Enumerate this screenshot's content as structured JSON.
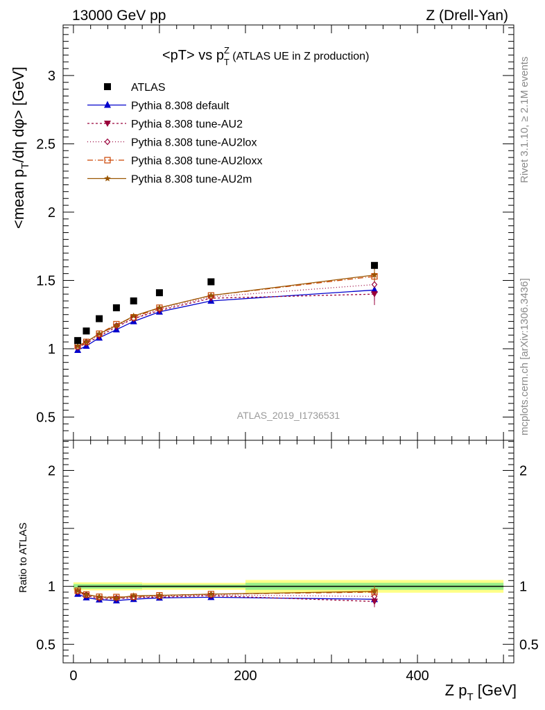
{
  "header": {
    "left": "13000 GeV pp",
    "right": "Z (Drell-Yan)"
  },
  "side_texts": {
    "rivet": "Rivet 3.1.10, ≥ 2.1M events",
    "mcplots": "mcplots.cern.ch [arXiv:1306.3436]"
  },
  "chart_data": {
    "type": "scatter",
    "title_main": "<pT> vs p",
    "title_sup": "Z",
    "title_sub": "T",
    "title_suffix": " (ATLAS UE in Z production)",
    "analysis_label": "ATLAS_2019_I1736531",
    "xlabel_main": "Z p",
    "xlabel_sub": "T",
    "xlabel_unit": " [GeV]",
    "ylabel_part1": "<mean p",
    "ylabel_sub": "T",
    "ylabel_part2": "/dη dφ> [GeV]",
    "ratio_ylabel": "Ratio to ATLAS",
    "xlim": [
      -12,
      512
    ],
    "ylim": [
      0.33,
      3.37
    ],
    "ratio_ylim": [
      0.34,
      2.26
    ],
    "x_ticks": [
      0,
      200,
      400
    ],
    "x_tick_labels": [
      "0",
      "200",
      "400"
    ],
    "y_ticks": [
      0.5,
      1,
      1.5,
      2,
      2.5,
      3
    ],
    "y_tick_labels": [
      "0.5",
      "1",
      "1.5",
      "2",
      "2.5",
      "3"
    ],
    "ratio_ticks": [
      0.5,
      1,
      2
    ],
    "ratio_tick_labels": [
      "0.5",
      "1",
      "2"
    ],
    "x": [
      5,
      15,
      30,
      50,
      70,
      100,
      160,
      350
    ],
    "data": {
      "name": "ATLAS",
      "values": [
        1.06,
        1.13,
        1.22,
        1.3,
        1.35,
        1.41,
        1.49,
        1.61
      ],
      "band": [
        [
          0,
          80,
          0.02,
          0.035
        ],
        [
          80,
          200,
          0.015,
          0.03
        ],
        [
          200,
          500,
          0.03,
          0.055
        ]
      ]
    },
    "series": [
      {
        "name": "Pythia 8.308 default",
        "color": "#0000cc",
        "marker": "triangle-up",
        "dash": "",
        "values": [
          0.99,
          1.02,
          1.08,
          1.14,
          1.2,
          1.27,
          1.35,
          1.43
        ]
      },
      {
        "name": "Pythia 8.308 tune-AU2",
        "color": "#99003a",
        "marker": "triangle-down",
        "dash": "3,3",
        "values": [
          1.01,
          1.04,
          1.09,
          1.16,
          1.22,
          1.28,
          1.37,
          1.4
        ]
      },
      {
        "name": "Pythia 8.308 tune-AU2lox",
        "color": "#99003a",
        "marker": "diamond-open",
        "dash": "1,3",
        "values": [
          1.01,
          1.05,
          1.1,
          1.17,
          1.22,
          1.29,
          1.38,
          1.47
        ]
      },
      {
        "name": "Pythia 8.308 tune-AU2loxx",
        "color": "#cc4400",
        "marker": "square-open",
        "dash": "8,3,1,3",
        "values": [
          1.02,
          1.05,
          1.11,
          1.18,
          1.23,
          1.3,
          1.39,
          1.53
        ]
      },
      {
        "name": "Pythia 8.308 tune-AU2m",
        "color": "#995500",
        "marker": "star",
        "dash": "",
        "values": [
          1.02,
          1.05,
          1.11,
          1.17,
          1.24,
          1.3,
          1.39,
          1.54
        ]
      }
    ],
    "last_point_error": 0.08
  }
}
